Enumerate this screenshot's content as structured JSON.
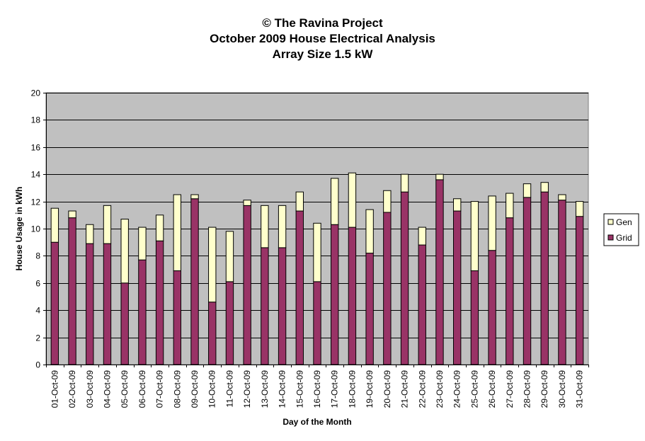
{
  "chart_data": {
    "type": "bar",
    "stacked": true,
    "title_lines": [
      "© The Ravina Project",
      "October 2009 House Electrical Analysis",
      "Array Size 1.5 kW"
    ],
    "xlabel": "Day of the Month",
    "ylabel": "House Usage in kWh",
    "ylim": [
      0,
      20
    ],
    "yticks": [
      0,
      2,
      4,
      6,
      8,
      10,
      12,
      14,
      16,
      18,
      20
    ],
    "grid": true,
    "legend_position": "right",
    "categories": [
      "01-Oct-09",
      "02-Oct-09",
      "03-Oct-09",
      "04-Oct-09",
      "05-Oct-09",
      "06-Oct-09",
      "07-Oct-09",
      "08-Oct-09",
      "09-Oct-09",
      "10-Oct-09",
      "11-Oct-09",
      "12-Oct-09",
      "13-Oct-09",
      "14-Oct-09",
      "15-Oct-09",
      "16-Oct-09",
      "17-Oct-09",
      "18-Oct-09",
      "19-Oct-09",
      "20-Oct-09",
      "21-Oct-09",
      "22-Oct-09",
      "23-Oct-09",
      "24-Oct-09",
      "25-Oct-09",
      "26-Oct-09",
      "27-Oct-09",
      "28-Oct-09",
      "29-Oct-09",
      "30-Oct-09",
      "31-Oct-09"
    ],
    "series": [
      {
        "name": "Grid",
        "color": "#993366",
        "values": [
          9.0,
          10.8,
          8.9,
          8.9,
          6.0,
          7.7,
          9.1,
          6.9,
          12.2,
          4.6,
          6.1,
          11.7,
          8.6,
          8.6,
          11.3,
          6.1,
          10.3,
          10.1,
          8.2,
          11.2,
          12.7,
          8.8,
          13.6,
          11.3,
          6.9,
          8.4,
          10.8,
          12.3,
          12.7,
          12.1,
          10.9
        ]
      },
      {
        "name": "Gen",
        "color": "#FFFFCC",
        "values": [
          2.5,
          0.5,
          1.4,
          2.8,
          4.7,
          2.4,
          1.9,
          5.6,
          0.3,
          5.5,
          3.7,
          0.4,
          3.1,
          3.1,
          1.4,
          4.3,
          3.4,
          4.0,
          3.2,
          1.6,
          1.3,
          1.3,
          0.4,
          0.9,
          5.1,
          4.0,
          1.8,
          1.0,
          0.7,
          0.4,
          1.1
        ]
      }
    ],
    "legend_order": [
      "Gen",
      "Grid"
    ],
    "plot_bg": "#C0C0C0"
  }
}
